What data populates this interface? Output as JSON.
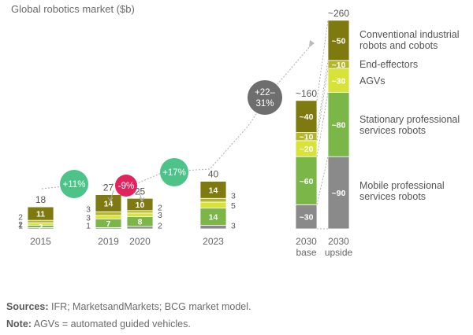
{
  "chart_data": {
    "type": "bar",
    "stacked": true,
    "title": "Global robotics market ($b)",
    "categories": [
      "2015",
      "2019",
      "2020",
      "2023",
      "2030 base",
      "2030 upside"
    ],
    "category_lines": [
      [
        "2015"
      ],
      [
        "2019"
      ],
      [
        "2020"
      ],
      [
        "2023"
      ],
      [
        "2030",
        "base"
      ],
      [
        "2030",
        "upside"
      ]
    ],
    "series": [
      {
        "name": "Mobile professional services robots",
        "color": "#8a8a8a",
        "values": [
          1,
          1,
          2,
          3,
          30,
          90
        ],
        "labels": [
          "1",
          "1",
          "2",
          "3",
          "~30",
          "~90"
        ]
      },
      {
        "name": "Stationary professional services robots",
        "color": "#7ab648",
        "values": [
          2,
          7,
          8,
          14,
          60,
          80
        ],
        "labels": [
          "2",
          "7",
          "8",
          "14",
          "~60",
          "~80"
        ]
      },
      {
        "name": "AGVs",
        "color": "#d8e33a",
        "values": [
          2,
          3,
          3,
          5,
          20,
          30
        ],
        "labels": [
          "2",
          "3",
          "3",
          "5",
          "~20",
          "~30"
        ]
      },
      {
        "name": "End-effectors",
        "color": "#b5b52a",
        "values": [
          2,
          3,
          2,
          3,
          10,
          10
        ],
        "labels": [
          "2",
          "3",
          "2",
          "3",
          "~10",
          "~10"
        ]
      },
      {
        "name": "Conventional industrial robots and cobots",
        "color": "#7f7a10",
        "values": [
          11,
          14,
          10,
          14,
          40,
          50
        ],
        "labels": [
          "11",
          "14",
          "10",
          "14",
          "~40",
          "~50"
        ]
      }
    ],
    "legend_lines": [
      [
        "Mobile professional",
        "services robots"
      ],
      [
        "Stationary professional",
        "services robots"
      ],
      [
        "AGVs"
      ],
      [
        "End-effectors"
      ],
      [
        "Conventional industrial",
        "robots and cobots"
      ]
    ],
    "totals": [
      "18",
      "27",
      "25",
      "40",
      "~160",
      "~260"
    ],
    "growth": [
      {
        "label": "+11%",
        "color": "#4dc38a"
      },
      {
        "label": "-9%",
        "color": "#e0245e"
      },
      {
        "label": "+17%",
        "color": "#4dc38a"
      },
      {
        "label_lines": [
          "+22–",
          "31%"
        ],
        "color": "#6e6e6e"
      }
    ],
    "legend": "right"
  },
  "footer": {
    "sources_label": "Sources:",
    "sources_text": " IFR; MarketsandMarkets; BCG market model.",
    "note_label": "Note:",
    "note_text": " AGVs = automated guided vehicles."
  }
}
